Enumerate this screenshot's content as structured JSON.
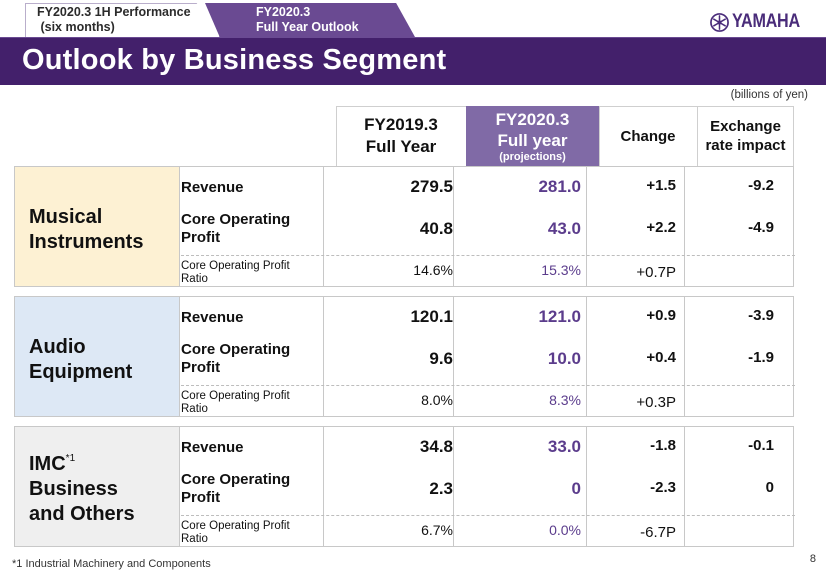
{
  "tabs": [
    {
      "line1": "FY2020.3  1H Performance",
      "line2": " (six months)"
    },
    {
      "line1": "FY2020.3",
      "line2": "Full Year Outlook"
    }
  ],
  "logo": {
    "text": "YAMAHA",
    "icon": "tuning-forks-emblem-icon",
    "color": "#4a2c7a"
  },
  "title": "Outlook by Business Segment",
  "units": "(billions of yen)",
  "colors": {
    "title_bar": "#43206b",
    "tab_active": "#6a4a92",
    "projection_header": "#806aa6",
    "projection_text": "#5b3c8c"
  },
  "columns": [
    {
      "line1": "FY2019.3",
      "line2": "Full Year"
    },
    {
      "line1": "FY2020.3",
      "line2": "Full year",
      "sub": "(projections)"
    },
    {
      "line1": "Change"
    },
    {
      "line1": "Exchange",
      "line2": "rate impact"
    }
  ],
  "row_labels": {
    "revenue": "Revenue",
    "cop_line1": "Core Operating",
    "cop_line2": "Profit",
    "ratio_line1": "Core Operating Profit",
    "ratio_line2": "Ratio"
  },
  "segments": [
    {
      "name_line1": "Musical",
      "name_line2": "Instruments",
      "name_line3": "",
      "footnote_mark": "",
      "bg": "#fdf1d3",
      "revenue": [
        "279.5",
        "281.0",
        "+1.5",
        "-9.2"
      ],
      "cop": [
        "40.8",
        "43.0",
        "+2.2",
        "-4.9"
      ],
      "ratio": [
        "14.6%",
        "15.3%",
        "+0.7P",
        ""
      ]
    },
    {
      "name_line1": "Audio",
      "name_line2": "Equipment",
      "name_line3": "",
      "footnote_mark": "",
      "bg": "#dde8f5",
      "revenue": [
        "120.1",
        "121.0",
        "+0.9",
        "-3.9"
      ],
      "cop": [
        "9.6",
        "10.0",
        "+0.4",
        "-1.9"
      ],
      "ratio": [
        "8.0%",
        "8.3%",
        "+0.3P",
        ""
      ]
    },
    {
      "name_line1": "IMC",
      "name_line2": "Business",
      "name_line3": "and Others",
      "footnote_mark": "*1",
      "bg": "#efefef",
      "revenue": [
        "34.8",
        "33.0",
        "-1.8",
        "-0.1"
      ],
      "cop": [
        "2.3",
        "0",
        "-2.3",
        "0"
      ],
      "ratio": [
        "6.7%",
        "0.0%",
        "-6.7P",
        ""
      ]
    }
  ],
  "footnote": "*1  Industrial Machinery and Components",
  "page_number": "8"
}
